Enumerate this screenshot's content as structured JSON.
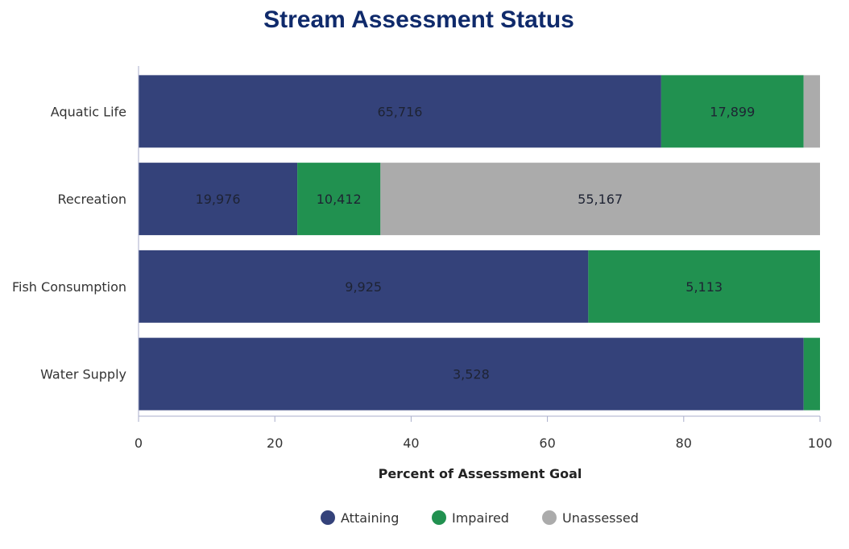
{
  "chart_data": {
    "type": "bar",
    "orientation": "horizontal",
    "stacked": true,
    "title": "Stream Assessment Status",
    "xlabel": "Percent of Assessment Goal",
    "xlim": [
      0,
      100
    ],
    "xticks": [
      "0",
      "20",
      "40",
      "60",
      "80",
      "100"
    ],
    "categories": [
      "Aquatic Life",
      "Recreation",
      "Fish Consumption",
      "Water Supply"
    ],
    "series": [
      {
        "name": "Attaining",
        "color": "#34427a",
        "values": [
          76.7,
          23.3,
          66.0,
          97.6
        ],
        "labels": [
          "65,716",
          "19,976",
          "9,925",
          "3,528"
        ]
      },
      {
        "name": "Impaired",
        "color": "#219150",
        "values": [
          20.9,
          12.2,
          34.0,
          2.4
        ],
        "labels": [
          "17,899",
          "10,412",
          "5,113",
          ""
        ]
      },
      {
        "name": "Unassessed",
        "color": "#ababab",
        "values": [
          2.4,
          64.5,
          0,
          0
        ],
        "labels": [
          "",
          "55,167",
          "",
          ""
        ]
      }
    ],
    "grid": false,
    "legend": "bottom"
  }
}
